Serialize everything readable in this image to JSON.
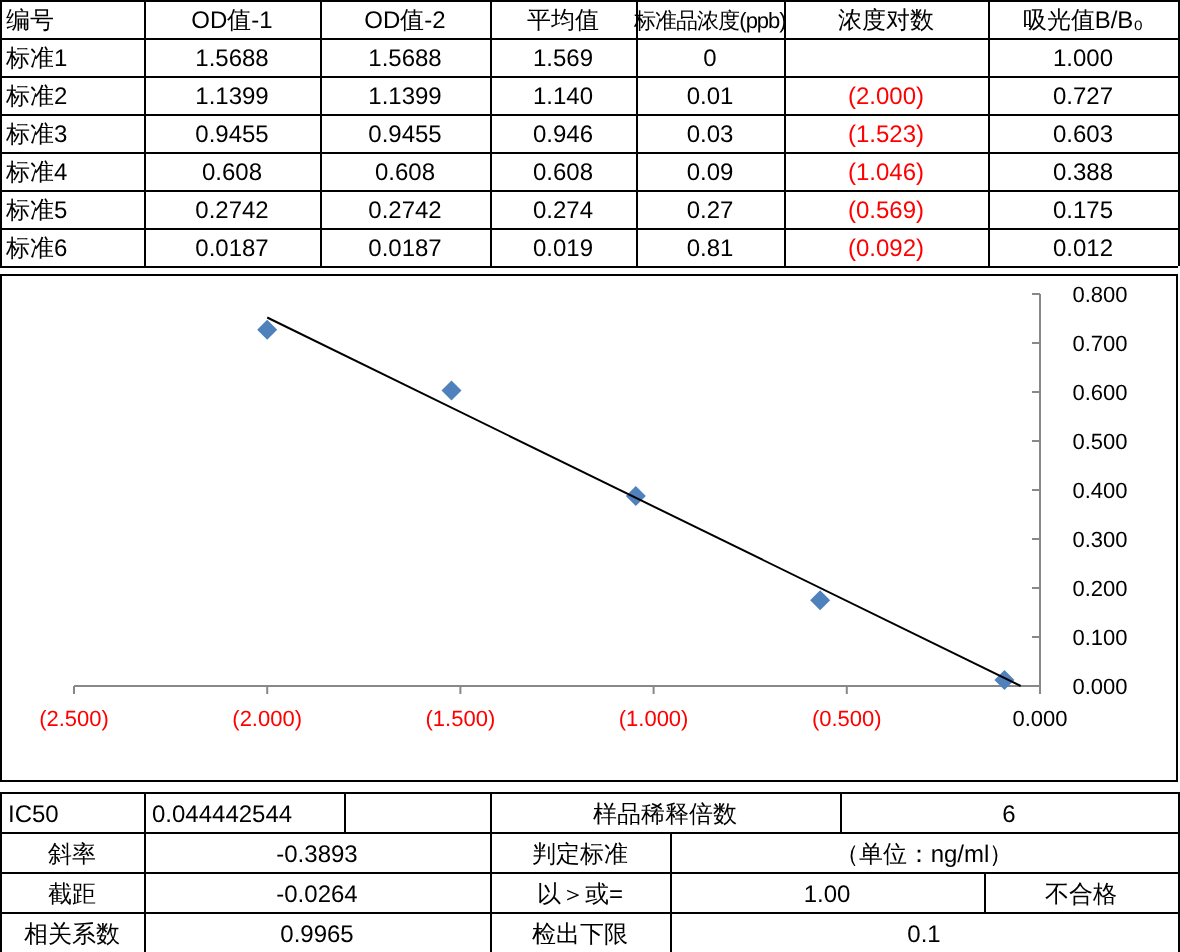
{
  "chart_data": [
    {
      "type": "other",
      "annotations": [
        "编号",
        "OD值-1",
        "OD值-2",
        "平均值",
        "标准品浓度(ppb)",
        "浓度对数",
        "吸光值B/B₀",
        "标准1",
        "1.5688",
        "1.5688",
        "1.569",
        "0",
        null,
        "1.000",
        "标准2",
        "1.1399",
        "1.1399",
        "1.140",
        "0.01",
        "(2.000)",
        "0.727",
        "标准3",
        "0.9455",
        "0.9455",
        "0.946",
        "0.03",
        "(1.523)",
        "0.603",
        "标准4",
        "0.608",
        "0.608",
        "0.608",
        "0.09",
        "(1.046)",
        "0.388",
        "标准5",
        "0.2742",
        "0.2742",
        "0.274",
        "0.27",
        "(0.569)",
        "0.175",
        "标准6",
        "0.0187",
        "0.0187",
        "0.019",
        "0.81",
        "(0.092)",
        "0.012"
      ]
    },
    {
      "type": "scatter",
      "x": [
        -2.0,
        -1.523,
        -1.046,
        -0.569,
        -0.092
      ],
      "series": [
        {
          "color": "#4f81bd",
          "marker": "diamond",
          "values": [
            0.727,
            0.603,
            0.388,
            0.175,
            0.012
          ]
        },
        {
          "type": "line",
          "marker": "none",
          "color": "#000000",
          "x": [
            -2.0,
            -0.05
          ],
          "values": [
            0.752,
            0.0
          ]
        }
      ],
      "xlim": [
        -2.5,
        0
      ],
      "xticks": [
        {
          "value": -2.5,
          "label": "(2.500)"
        },
        {
          "value": -2,
          "label": "(2.000)"
        },
        {
          "value": -1.5,
          "label": "(1.500)"
        },
        {
          "value": -1,
          "label": "(1.000)"
        },
        {
          "value": -0.5,
          "label": "(0.500)"
        },
        {
          "value": 0,
          "label": "0.000"
        }
      ],
      "ylim": [
        0,
        0.8
      ],
      "yticks": [
        {
          "value": 0,
          "label": "0.000"
        },
        {
          "value": 0.1,
          "label": "0.100"
        },
        {
          "value": 0.2,
          "label": "0.200"
        },
        {
          "value": 0.3,
          "label": "0.300"
        },
        {
          "value": 0.4,
          "label": "0.400"
        },
        {
          "value": 0.5,
          "label": "0.500"
        },
        {
          "value": 0.6,
          "label": "0.600"
        },
        {
          "value": 0.7,
          "label": "0.700"
        },
        {
          "value": 0.8,
          "label": "0.800"
        }
      ]
    },
    {
      "type": "other",
      "annotations": [
        "IC50",
        "0.044442544",
        "样品稀释倍数",
        "6",
        "斜率",
        "-0.3893",
        "判定标准",
        "（单位：ng/ml）",
        "截距",
        "-0.0264",
        "以＞或=",
        "1.00",
        "不合格",
        "相关系数",
        "0.9965",
        "检出下限",
        "0.1"
      ]
    }
  ]
}
